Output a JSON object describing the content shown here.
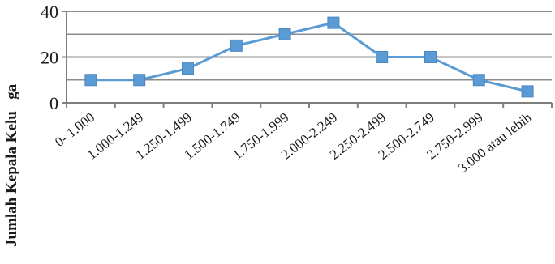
{
  "chart_data": {
    "type": "line",
    "title": "",
    "xlabel": "",
    "ylabel": "Jumlah Kepala Kelu   ga",
    "categories": [
      "0- 1.000",
      "1.000-1.249",
      "1.250-1.499",
      "1.500-1.749",
      "1.750-1.999",
      "2.000-2.249",
      "2.250-2.499",
      "2.500-2.749",
      "2.750-2.999",
      "3.000 atau lebih"
    ],
    "series": [
      {
        "values": [
          10,
          10,
          15,
          25,
          30,
          35,
          20,
          20,
          10,
          5
        ]
      }
    ],
    "ylim": [
      0,
      40
    ],
    "yticks": [
      0,
      20,
      40
    ],
    "grid": true,
    "legend": "none",
    "colors": {
      "series": "#5b9bd5",
      "marker": "#5b9bd5",
      "grid": "#8c8c8c",
      "axis": "#7f7f7f"
    }
  }
}
